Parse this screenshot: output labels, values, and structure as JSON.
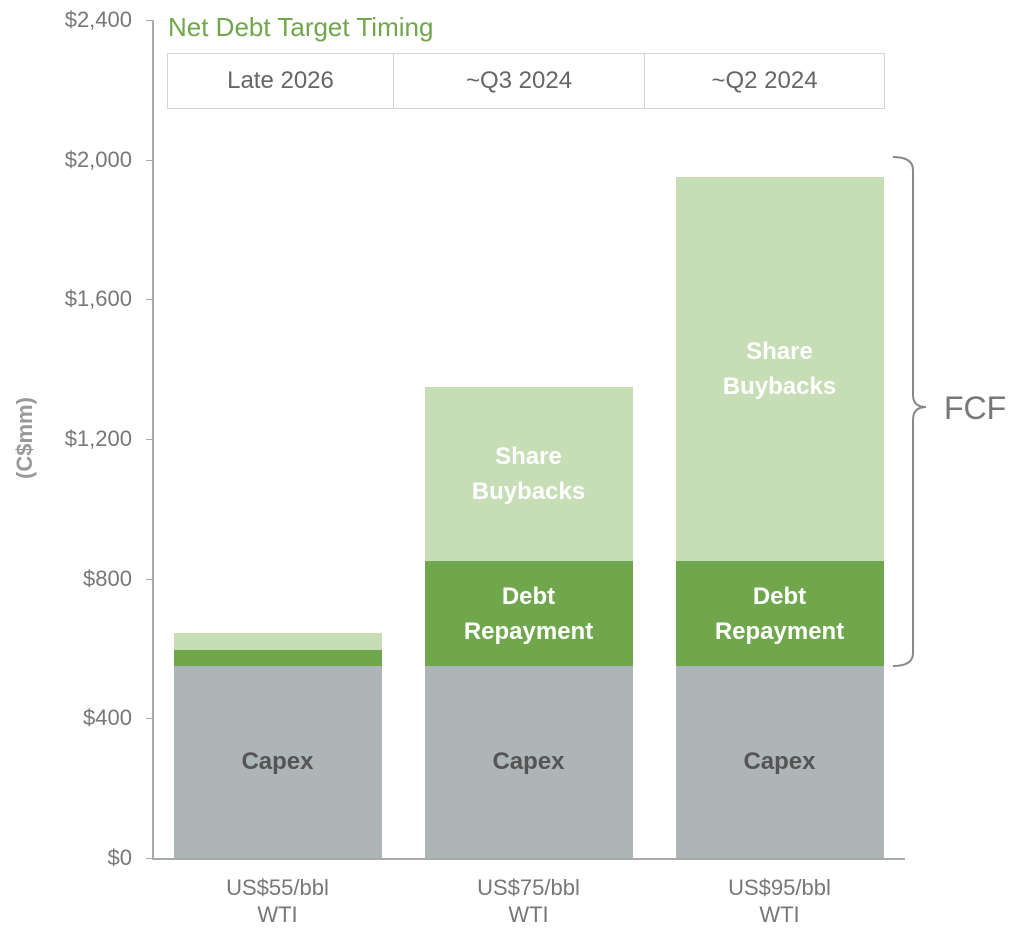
{
  "chart_data": {
    "type": "stacked_bar",
    "y_label": "(C$mm)",
    "timing_title": "Net Debt Target Timing",
    "timing": [
      "Late 2026",
      "~Q3 2024",
      "~Q2 2024"
    ],
    "bracket_label": "FCF",
    "categories": [
      "US$55/bbl WTI",
      "US$75/bbl WTI",
      "US$95/bbl WTI"
    ],
    "series": [
      {
        "name": "Capex",
        "color": "#adb5b7",
        "values": [
          550,
          550,
          550
        ],
        "labeled": [
          true,
          true,
          true
        ]
      },
      {
        "name": "Debt Repayment",
        "color": "#70a64c",
        "values": [
          45,
          300,
          300
        ],
        "labeled": [
          false,
          true,
          true
        ]
      },
      {
        "name": "Share Buybacks",
        "color": "#c6ddb5",
        "values": [
          50,
          500,
          1100
        ],
        "labeled": [
          false,
          true,
          true
        ]
      }
    ],
    "ylim": [
      0,
      2400
    ],
    "yticks": [
      {
        "value": 0,
        "label": "$0"
      },
      {
        "value": 400,
        "label": "$400"
      },
      {
        "value": 800,
        "label": "$800"
      },
      {
        "value": 1200,
        "label": "$1,200"
      },
      {
        "value": 1600,
        "label": "$1,600"
      },
      {
        "value": 2000,
        "label": "$2,000"
      },
      {
        "value": 2400,
        "label": "$2,400"
      }
    ]
  }
}
